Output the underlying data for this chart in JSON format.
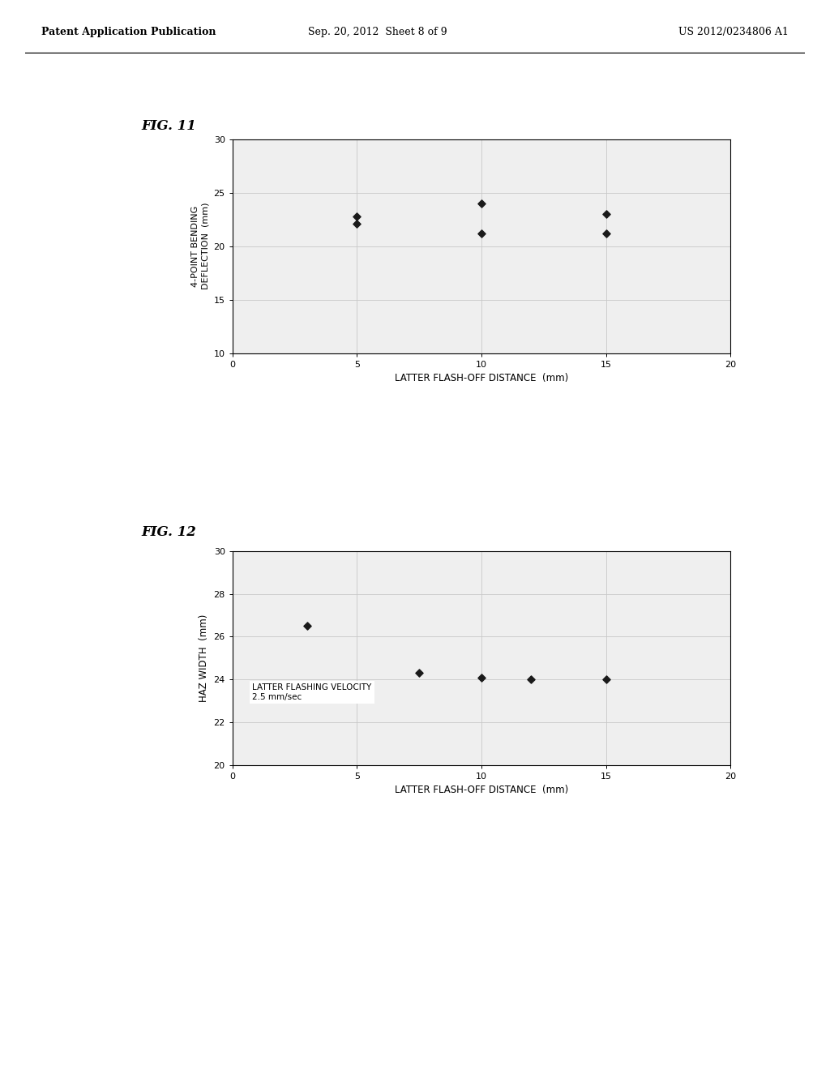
{
  "fig11_title": "FIG. 11",
  "fig12_title": "FIG. 12",
  "header_left": "Patent Application Publication",
  "header_mid": "Sep. 20, 2012  Sheet 8 of 9",
  "header_right": "US 2012/0234806 A1",
  "fig11": {
    "x": [
      5,
      5,
      10,
      10,
      15,
      15
    ],
    "y": [
      22.8,
      22.1,
      24.0,
      21.2,
      23.0,
      21.2
    ],
    "xlabel": "LATTER FLASH-OFF DISTANCE  (mm)",
    "ylabel": "4-POINT BENDING\nDEFLECTION  (mm)",
    "xlim": [
      0,
      20
    ],
    "ylim": [
      10,
      30
    ],
    "xticks": [
      0,
      5,
      10,
      15,
      20
    ],
    "yticks": [
      10,
      15,
      20,
      25,
      30
    ]
  },
  "fig12": {
    "x": [
      3,
      7.5,
      10,
      12,
      15
    ],
    "y": [
      26.5,
      24.3,
      24.1,
      24.0,
      24.0
    ],
    "xlabel": "LATTER FLASH-OFF DISTANCE  (mm)",
    "ylabel": "HAZ WIDTH  (mm)",
    "xlim": [
      0,
      20
    ],
    "ylim": [
      20,
      30
    ],
    "xticks": [
      0,
      5,
      10,
      15,
      20
    ],
    "yticks": [
      20,
      22,
      24,
      26,
      28,
      30
    ],
    "annotation_line1": "LATTER FLASHING VELOCITY",
    "annotation_line2": "2.5 mm/sec"
  },
  "marker_color": "#1a1a1a",
  "grid_color": "#c8c8c8",
  "bg_color": "#efefef",
  "fig_bg": "#ffffff"
}
